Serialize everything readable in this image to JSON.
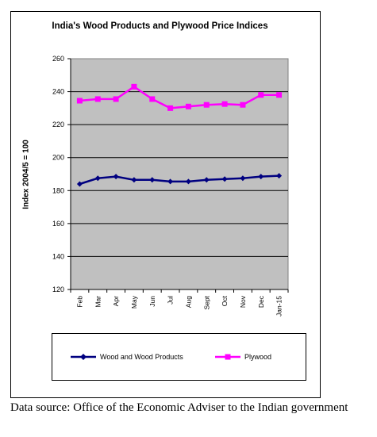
{
  "chart_data": {
    "type": "line",
    "title": "India's  Wood Products and Plywood Price Indices",
    "ylabel": "Index 2004/5 = 100",
    "xlabel": "",
    "categories": [
      "Feb",
      "Mar",
      "Apr",
      "May",
      "Jun",
      "Jul",
      "Aug",
      "Sept",
      "Oct",
      "Nov",
      "Dec",
      "Jan-15"
    ],
    "ylim": [
      120,
      260
    ],
    "yticks": [
      120,
      140,
      160,
      180,
      200,
      220,
      240,
      260
    ],
    "grid": true,
    "legend_position": "bottom",
    "series": [
      {
        "name": "Wood and Wood Products",
        "color": "#000080",
        "marker": "diamond",
        "values": [
          184,
          187.5,
          188.5,
          186.5,
          186.5,
          185.5,
          185.5,
          186.5,
          187,
          187.5,
          188.5,
          189
        ]
      },
      {
        "name": "Plywood",
        "color": "#ff00ff",
        "marker": "square",
        "values": [
          234.5,
          235.5,
          235.5,
          243,
          235.5,
          230,
          231,
          232,
          232.5,
          232,
          238,
          238
        ]
      }
    ]
  },
  "colors": {
    "plot_background": "#c0c0c0",
    "grid": "#000000"
  },
  "source_text": "Data source: Office of the Economic Adviser to the Indian government"
}
